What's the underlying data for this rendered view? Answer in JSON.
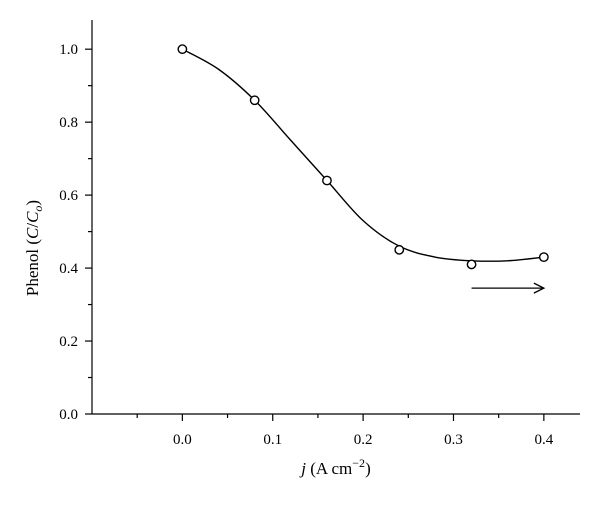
{
  "chart_data": {
    "type": "scatter",
    "title": "",
    "xlabel": {
      "italic": "j",
      "rest": " (A cm",
      "sup": "−2",
      "close": ")"
    },
    "ylabel": {
      "prefix": "Phenol (",
      "c": "C",
      "slash": "/",
      "c0": "C",
      "sub": "o",
      "close": ")"
    },
    "xlim": [
      -0.1,
      0.44
    ],
    "ylim": [
      0.0,
      1.08
    ],
    "x_ticks": [
      0.0,
      0.1,
      0.2,
      0.3,
      0.4
    ],
    "x_tick_labels": [
      "0.0",
      "0.1",
      "0.2",
      "0.3",
      "0.4"
    ],
    "y_ticks": [
      0.0,
      0.2,
      0.4,
      0.6,
      0.8,
      1.0
    ],
    "y_tick_labels": [
      "0.0",
      "0.2",
      "0.4",
      "0.6",
      "0.8",
      "1.0"
    ],
    "grid": false,
    "series": [
      {
        "marker": "open-circle",
        "x": [
          0.0,
          0.08,
          0.16,
          0.24,
          0.32,
          0.4
        ],
        "y": [
          1.0,
          0.86,
          0.64,
          0.45,
          0.41,
          0.43
        ]
      }
    ],
    "fit_curve": {
      "x": [
        0.0,
        0.04,
        0.08,
        0.12,
        0.16,
        0.2,
        0.24,
        0.28,
        0.32,
        0.36,
        0.4
      ],
      "y": [
        1.0,
        0.945,
        0.86,
        0.75,
        0.64,
        0.53,
        0.46,
        0.43,
        0.42,
        0.42,
        0.43
      ]
    },
    "annotation_arrow": {
      "x_from": 0.32,
      "x_to": 0.4,
      "y": 0.345,
      "direction": "right"
    }
  }
}
